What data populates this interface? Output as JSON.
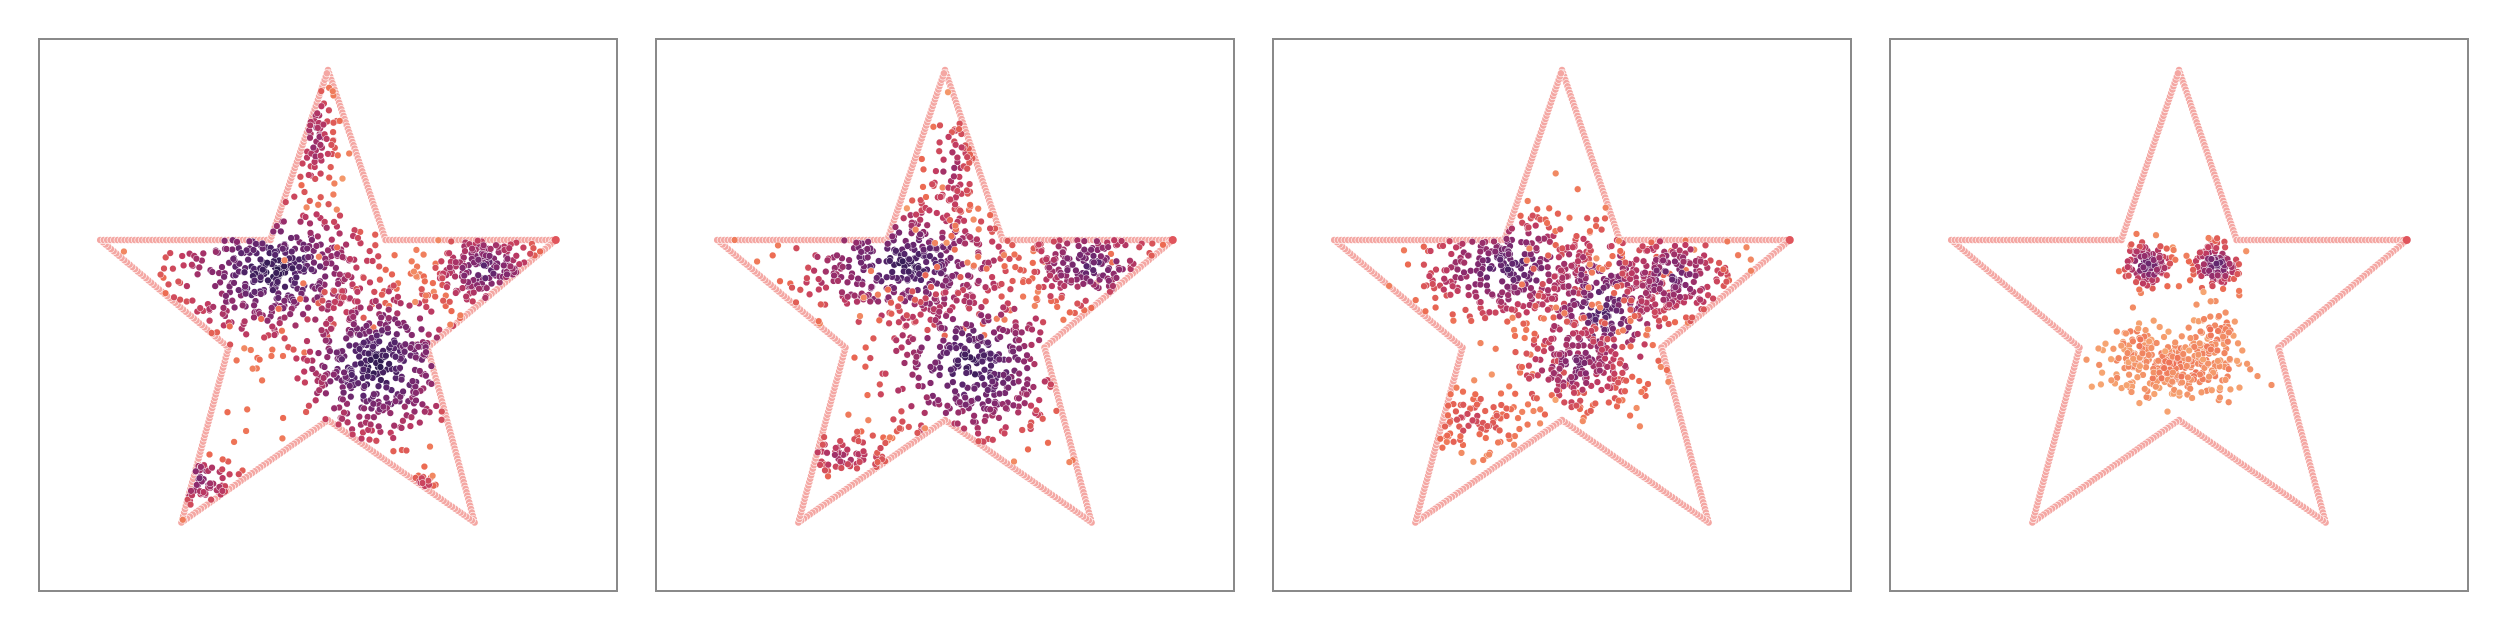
{
  "chart_data": [
    {
      "type": "scatter",
      "title": "",
      "xlabel": "",
      "ylabel": "",
      "xlim": [
        -1.1,
        1.1
      ],
      "ylim": [
        -1.1,
        1.1
      ],
      "grid": false,
      "legend": "none",
      "series": [
        {
          "role": "boundary",
          "color": "#f4a7a3",
          "shape": "five-pointed star outline",
          "vertices": [
            [
              0,
              0.98
            ],
            [
              0.22,
              0.3
            ],
            [
              0.87,
              0.3
            ],
            [
              0.38,
              -0.13
            ],
            [
              0.56,
              -0.83
            ],
            [
              0,
              -0.42
            ],
            [
              -0.56,
              -0.83
            ],
            [
              -0.38,
              -0.13
            ],
            [
              -0.87,
              0.3
            ],
            [
              -0.22,
              0.3
            ]
          ]
        },
        {
          "role": "samples",
          "colormap": [
            "#f6a572",
            "#ec6a52",
            "#c13b61",
            "#892a6e",
            "#58266e",
            "#2c1a4f"
          ],
          "clusters": [
            {
              "center": [
                -0.21,
                0.18
              ],
              "spread": [
                0.2,
                0.15
              ],
              "count": 430,
              "density": 1.0
            },
            {
              "center": [
                0.19,
                -0.2
              ],
              "spread": [
                0.17,
                0.17
              ],
              "count": 430,
              "density": 1.0
            },
            {
              "center": [
                0.6,
                0.18
              ],
              "spread": [
                0.11,
                0.09
              ],
              "count": 170,
              "density": 0.8
            },
            {
              "center": [
                -0.05,
                0.7
              ],
              "spread": [
                0.05,
                0.13
              ],
              "count": 70,
              "density": 0.6
            },
            {
              "center": [
                -0.51,
                -0.66
              ],
              "spread": [
                0.1,
                0.06
              ],
              "count": 60,
              "density": 0.7
            },
            {
              "center": [
                0.36,
                -0.75
              ],
              "spread": [
                0.03,
                0.06
              ],
              "count": 25,
              "density": 0.7
            }
          ]
        }
      ]
    },
    {
      "type": "scatter",
      "title": "",
      "xlabel": "",
      "ylabel": "",
      "xlim": [
        -1.1,
        1.1
      ],
      "ylim": [
        -1.1,
        1.1
      ],
      "grid": false,
      "legend": "none",
      "series": [
        {
          "role": "boundary",
          "color": "#f4a7a3",
          "shape": "five-pointed star outline",
          "vertices": [
            [
              0,
              0.98
            ],
            [
              0.22,
              0.3
            ],
            [
              0.87,
              0.3
            ],
            [
              0.38,
              -0.13
            ],
            [
              0.56,
              -0.83
            ],
            [
              0,
              -0.42
            ],
            [
              -0.56,
              -0.83
            ],
            [
              -0.38,
              -0.13
            ],
            [
              -0.87,
              0.3
            ],
            [
              -0.22,
              0.3
            ]
          ]
        },
        {
          "role": "samples",
          "colormap": [
            "#f6a572",
            "#ec6a52",
            "#c13b61",
            "#892a6e",
            "#58266e",
            "#2c1a4f"
          ],
          "clusters": [
            {
              "center": [
                -0.15,
                0.2
              ],
              "spread": [
                0.22,
                0.13
              ],
              "count": 380,
              "density": 0.95
            },
            {
              "center": [
                0.1,
                -0.2
              ],
              "spread": [
                0.19,
                0.17
              ],
              "count": 380,
              "density": 0.95
            },
            {
              "center": [
                0.55,
                0.2
              ],
              "spread": [
                0.14,
                0.09
              ],
              "count": 170,
              "density": 0.8
            },
            {
              "center": [
                0.02,
                0.58
              ],
              "spread": [
                0.06,
                0.13
              ],
              "count": 80,
              "density": 0.55
            },
            {
              "center": [
                -0.39,
                -0.56
              ],
              "spread": [
                0.12,
                0.07
              ],
              "count": 70,
              "density": 0.5
            }
          ]
        }
      ]
    },
    {
      "type": "scatter",
      "title": "",
      "xlabel": "",
      "ylabel": "",
      "xlim": [
        -1.1,
        1.1
      ],
      "ylim": [
        -1.1,
        1.1
      ],
      "grid": false,
      "legend": "none",
      "series": [
        {
          "role": "boundary",
          "color": "#f4a7a3",
          "shape": "five-pointed star outline",
          "vertices": [
            [
              0,
              0.98
            ],
            [
              0.22,
              0.3
            ],
            [
              0.87,
              0.3
            ],
            [
              0.38,
              -0.13
            ],
            [
              0.56,
              -0.83
            ],
            [
              0,
              -0.42
            ],
            [
              -0.56,
              -0.83
            ],
            [
              -0.38,
              -0.13
            ],
            [
              -0.87,
              0.3
            ],
            [
              -0.22,
              0.3
            ]
          ]
        },
        {
          "role": "samples",
          "colormap": [
            "#f6a572",
            "#ec6a52",
            "#c13b61",
            "#892a6e",
            "#58266e",
            "#2c1a4f"
          ],
          "clusters": [
            {
              "center": [
                -0.2,
                0.19
              ],
              "spread": [
                0.18,
                0.11
              ],
              "count": 300,
              "density": 0.85
            },
            {
              "center": [
                0.15,
                0.02
              ],
              "spread": [
                0.14,
                0.18
              ],
              "count": 300,
              "density": 0.85
            },
            {
              "center": [
                0.42,
                0.15
              ],
              "spread": [
                0.12,
                0.1
              ],
              "count": 200,
              "density": 0.75
            },
            {
              "center": [
                0.05,
                -0.2
              ],
              "spread": [
                0.12,
                0.1
              ],
              "count": 180,
              "density": 0.7
            },
            {
              "center": [
                -0.35,
                -0.42
              ],
              "spread": [
                0.13,
                0.08
              ],
              "count": 90,
              "density": 0.35
            }
          ]
        }
      ]
    },
    {
      "type": "scatter",
      "title": "",
      "xlabel": "",
      "ylabel": "",
      "xlim": [
        -1.1,
        1.1
      ],
      "ylim": [
        -1.1,
        1.1
      ],
      "grid": false,
      "legend": "none",
      "series": [
        {
          "role": "boundary",
          "color": "#f4a7a3",
          "shape": "five-pointed star outline",
          "vertices": [
            [
              0,
              0.98
            ],
            [
              0.22,
              0.3
            ],
            [
              0.87,
              0.3
            ],
            [
              0.38,
              -0.13
            ],
            [
              0.56,
              -0.83
            ],
            [
              0,
              -0.42
            ],
            [
              -0.56,
              -0.83
            ],
            [
              -0.38,
              -0.13
            ],
            [
              -0.87,
              0.3
            ],
            [
              -0.22,
              0.3
            ]
          ]
        },
        {
          "role": "samples",
          "colormap": [
            "#f6a572",
            "#ec6a52",
            "#c13b61",
            "#892a6e",
            "#58266e",
            "#2c1a4f"
          ],
          "clusters": [
            {
              "center": [
                -0.12,
                0.2
              ],
              "spread": [
                0.05,
                0.05
              ],
              "count": 110,
              "density": 0.8
            },
            {
              "center": [
                0.14,
                0.2
              ],
              "spread": [
                0.05,
                0.05
              ],
              "count": 110,
              "density": 0.8
            },
            {
              "center": [
                0.0,
                -0.21
              ],
              "spread": [
                0.13,
                0.06
              ],
              "count": 260,
              "density": 0.15
            },
            {
              "center": [
                0.13,
                -0.08
              ],
              "spread": [
                0.05,
                0.06
              ],
              "count": 60,
              "density": 0.15
            },
            {
              "center": [
                -0.15,
                -0.12
              ],
              "spread": [
                0.04,
                0.05
              ],
              "count": 40,
              "density": 0.15
            }
          ]
        }
      ]
    }
  ]
}
